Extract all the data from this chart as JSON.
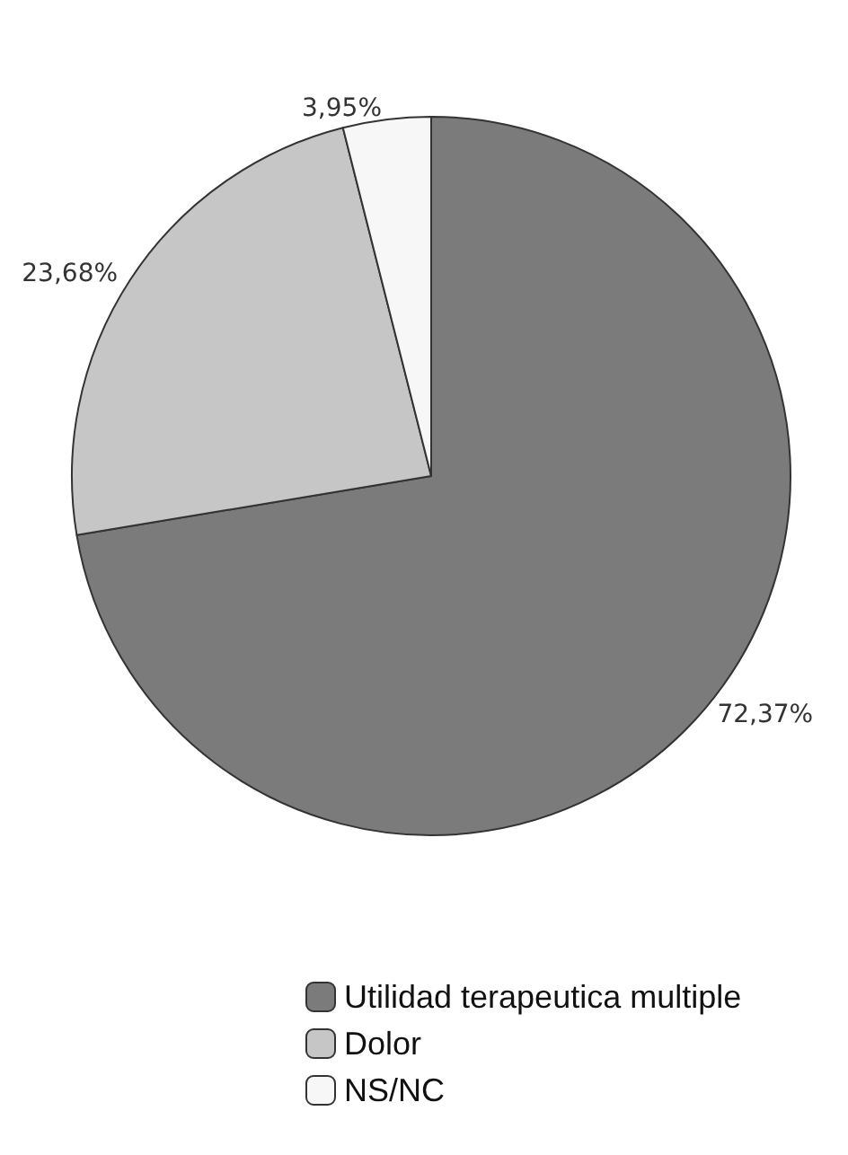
{
  "chart_data": {
    "type": "pie",
    "categories": [
      "Utilidad terapeutica multiple",
      "Dolor",
      "NS/NC"
    ],
    "values": [
      72.37,
      23.68,
      3.95
    ],
    "colors": [
      "#7b7b7b",
      "#c6c6c6",
      "#f7f7f7"
    ],
    "value_labels": [
      "72,37%",
      "23,68%",
      "3,95%"
    ],
    "legend": "bottom"
  }
}
